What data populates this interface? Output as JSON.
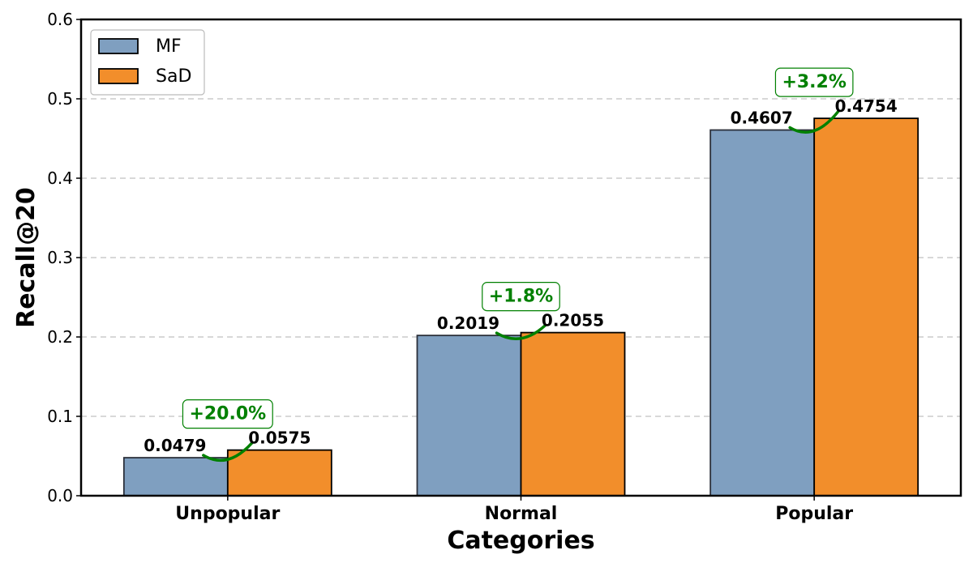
{
  "chart_data": {
    "type": "bar",
    "title": "",
    "xlabel": "Categories",
    "ylabel": "Recall@20",
    "ylim": [
      0,
      0.6
    ],
    "yticks": [
      "0.0",
      "0.1",
      "0.2",
      "0.3",
      "0.4",
      "0.5",
      "0.6"
    ],
    "grid": "y-dashed",
    "legend_position": "top-left",
    "categories": [
      "Unpopular",
      "Normal",
      "Popular"
    ],
    "series": [
      {
        "name": "MF",
        "color": "#7f9fc0",
        "values": [
          0.0479,
          0.2019,
          0.4607
        ],
        "labels": [
          "0.0479",
          "0.2019",
          "0.4607"
        ]
      },
      {
        "name": "SaD",
        "color": "#f28e2b",
        "values": [
          0.0575,
          0.2055,
          0.4754
        ],
        "labels": [
          "0.0575",
          "0.2055",
          "0.4754"
        ]
      }
    ],
    "annotations": [
      {
        "category": "Unpopular",
        "text": "+20.0%"
      },
      {
        "category": "Normal",
        "text": "+1.8%"
      },
      {
        "category": "Popular",
        "text": "+3.2%"
      }
    ],
    "annotation_color": "#008000"
  }
}
